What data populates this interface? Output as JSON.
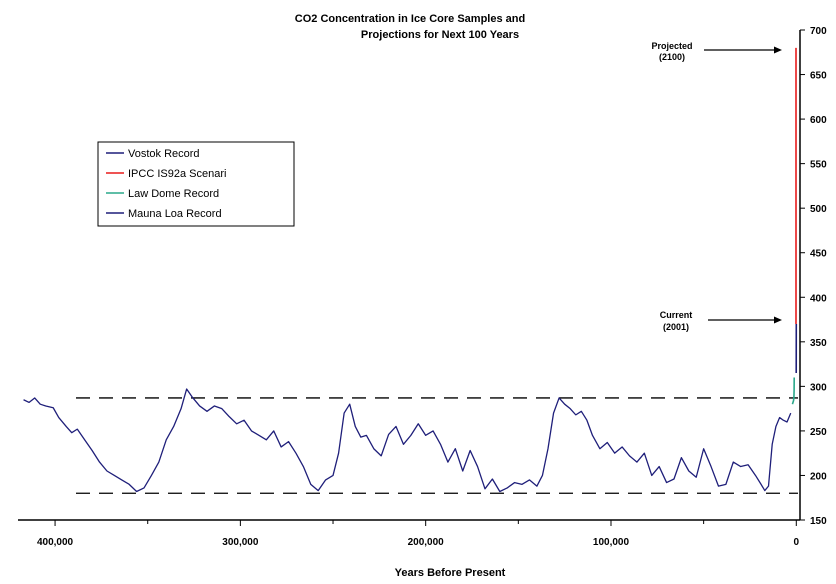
{
  "chart_data": {
    "type": "line",
    "title": "CO2 Concentration in Ice Core Samples and",
    "subtitle": "Projections for Next 100 Years",
    "xlabel": "Years Before Present",
    "ylabel": "",
    "x_reversed": true,
    "xlim": [
      420000,
      -2000
    ],
    "ylim": [
      150,
      700
    ],
    "x_ticks": [
      {
        "value": 400000,
        "label": "400,000"
      },
      {
        "value": 300000,
        "label": "300,000"
      },
      {
        "value": 200000,
        "label": "200,000"
      },
      {
        "value": 100000,
        "label": "100,000"
      },
      {
        "value": 0,
        "label": "0"
      }
    ],
    "y_ticks": [
      {
        "value": 150,
        "label": "150"
      },
      {
        "value": 200,
        "label": "200"
      },
      {
        "value": 250,
        "label": "250"
      },
      {
        "value": 300,
        "label": "300"
      },
      {
        "value": 350,
        "label": "350"
      },
      {
        "value": 400,
        "label": "400"
      },
      {
        "value": 450,
        "label": "450"
      },
      {
        "value": 500,
        "label": "500"
      },
      {
        "value": 550,
        "label": "550"
      },
      {
        "value": 600,
        "label": "600"
      },
      {
        "value": 650,
        "label": "650"
      },
      {
        "value": 700,
        "label": "700"
      }
    ],
    "reference_lines": [
      {
        "y": 287,
        "style": "dashed",
        "color": "#000000"
      },
      {
        "y": 180,
        "style": "dashed",
        "color": "#000000"
      }
    ],
    "legend_position": "left",
    "series": [
      {
        "name": "Vostok Record",
        "color": "#1f1f7a",
        "x": [
          417000,
          414000,
          411000,
          408000,
          405000,
          401000,
          398000,
          394000,
          391000,
          388000,
          384000,
          380000,
          376000,
          372000,
          368000,
          364000,
          360000,
          356000,
          352000,
          348000,
          344000,
          340000,
          336000,
          332000,
          329000,
          326000,
          322000,
          318000,
          314000,
          310000,
          306000,
          302000,
          298000,
          294000,
          290000,
          286000,
          282000,
          278000,
          274000,
          270000,
          266000,
          262000,
          258000,
          254000,
          250000,
          247000,
          244000,
          241000,
          238000,
          235000,
          232000,
          228000,
          224000,
          220000,
          216000,
          212000,
          208000,
          204000,
          200000,
          196000,
          192000,
          188000,
          184000,
          180000,
          176000,
          172000,
          168000,
          164000,
          160000,
          156000,
          152000,
          148000,
          144000,
          140000,
          137000,
          134000,
          131000,
          128000,
          125000,
          122000,
          119000,
          116000,
          113000,
          110000,
          106000,
          102000,
          98000,
          94000,
          90000,
          86000,
          82000,
          78000,
          74000,
          70000,
          66000,
          62000,
          58000,
          54000,
          50000,
          46000,
          42000,
          38000,
          34000,
          30000,
          26000,
          22000,
          19000,
          17000,
          15000,
          13000,
          11000,
          9000,
          7000,
          5000,
          3000
        ],
        "y": [
          285,
          282,
          287,
          280,
          278,
          276,
          265,
          255,
          248,
          252,
          240,
          228,
          215,
          205,
          200,
          195,
          190,
          182,
          186,
          200,
          215,
          240,
          255,
          275,
          297,
          288,
          278,
          272,
          278,
          275,
          266,
          258,
          262,
          250,
          245,
          240,
          250,
          232,
          238,
          225,
          210,
          190,
          183,
          195,
          200,
          225,
          270,
          280,
          255,
          243,
          245,
          230,
          222,
          246,
          255,
          235,
          245,
          258,
          245,
          250,
          235,
          215,
          230,
          205,
          228,
          210,
          185,
          196,
          182,
          186,
          192,
          190,
          195,
          188,
          200,
          230,
          270,
          287,
          280,
          275,
          268,
          272,
          262,
          245,
          230,
          237,
          225,
          232,
          222,
          215,
          225,
          200,
          210,
          192,
          196,
          220,
          205,
          198,
          230,
          210,
          188,
          190,
          215,
          210,
          212,
          200,
          190,
          183,
          188,
          235,
          255,
          265,
          262,
          260,
          270
        ]
      },
      {
        "name": "IPCC IS92a Scenario",
        "color": "#e81c1c",
        "x": [
          0,
          0,
          0,
          0,
          0
        ],
        "y": [
          370,
          420,
          500,
          600,
          680
        ]
      },
      {
        "name": "Law Dome Record",
        "color": "#2aa88a",
        "x": [
          1000,
          700,
          400,
          200,
          100,
          50
        ],
        "y": [
          280,
          282,
          284,
          288,
          296,
          310
        ]
      },
      {
        "name": "Mauna Loa Record",
        "color": "#1f1f7a",
        "x": [
          45,
          35,
          25,
          15,
          5
        ],
        "y": [
          315,
          325,
          338,
          352,
          370
        ]
      }
    ],
    "annotations": [
      {
        "text": "Projected",
        "sub": "(2100)",
        "x": 0,
        "y": 680
      },
      {
        "text": "Current",
        "sub": "(2001)",
        "x": 0,
        "y": 370
      }
    ]
  },
  "legend": {
    "entries": [
      "Vostok Record",
      "IPCC IS92a Scenari",
      "Law Dome Record",
      "Mauna Loa Record"
    ]
  }
}
